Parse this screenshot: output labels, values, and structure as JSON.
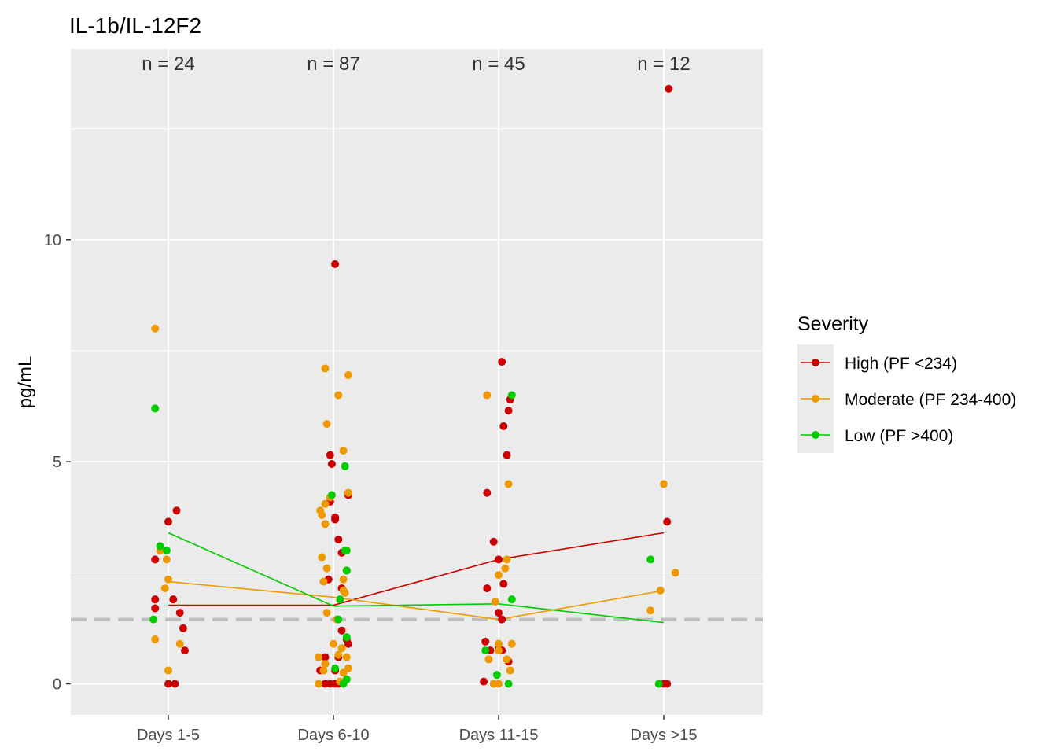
{
  "chart_data": {
    "type": "scatter",
    "title": "IL-1b/IL-12F2",
    "xlabel": "",
    "ylabel": "pg/mL",
    "categories": [
      "Days 1-5",
      "Days 6-10",
      "Days 11-15",
      "Days >15"
    ],
    "ylim": [
      -0.7,
      14.3
    ],
    "yticks": [
      0,
      5,
      10
    ],
    "reference_line": 1.45,
    "counts": [
      "n = 24",
      "n = 87",
      "n = 45",
      "n = 12"
    ],
    "legend": {
      "title": "Severity",
      "position": "right"
    },
    "series": [
      {
        "name": "High (PF <234)",
        "color": "#cc0000",
        "means": [
          1.77,
          1.77,
          2.8,
          3.4
        ],
        "points": [
          {
            "cat": 0,
            "j": -0.08,
            "y": 2.8
          },
          {
            "cat": 0,
            "j": -0.08,
            "y": 1.9
          },
          {
            "cat": 0,
            "j": -0.08,
            "y": 1.7
          },
          {
            "cat": 0,
            "j": 0.0,
            "y": 3.65
          },
          {
            "cat": 0,
            "j": 0.05,
            "y": 3.9
          },
          {
            "cat": 0,
            "j": 0.03,
            "y": 1.9
          },
          {
            "cat": 0,
            "j": 0.07,
            "y": 1.6
          },
          {
            "cat": 0,
            "j": 0.09,
            "y": 1.25
          },
          {
            "cat": 0,
            "j": 0.1,
            "y": 0.75
          },
          {
            "cat": 0,
            "j": 0.0,
            "y": 0.0
          },
          {
            "cat": 0,
            "j": 0.04,
            "y": 0.0
          },
          {
            "cat": 1,
            "j": 0.01,
            "y": 9.45
          },
          {
            "cat": 1,
            "j": -0.02,
            "y": 5.15
          },
          {
            "cat": 1,
            "j": -0.01,
            "y": 4.95
          },
          {
            "cat": 1,
            "j": 0.09,
            "y": 4.25
          },
          {
            "cat": 1,
            "j": -0.02,
            "y": 4.1
          },
          {
            "cat": 1,
            "j": 0.01,
            "y": 3.75
          },
          {
            "cat": 1,
            "j": 0.01,
            "y": 3.7
          },
          {
            "cat": 1,
            "j": 0.03,
            "y": 3.25
          },
          {
            "cat": 1,
            "j": 0.05,
            "y": 2.95
          },
          {
            "cat": 1,
            "j": 0.08,
            "y": 2.55
          },
          {
            "cat": 1,
            "j": -0.03,
            "y": 2.35
          },
          {
            "cat": 1,
            "j": 0.05,
            "y": 2.15
          },
          {
            "cat": 1,
            "j": 0.05,
            "y": 1.2
          },
          {
            "cat": 1,
            "j": 0.08,
            "y": 1.0
          },
          {
            "cat": 1,
            "j": 0.09,
            "y": 0.9
          },
          {
            "cat": 1,
            "j": -0.05,
            "y": 0.6
          },
          {
            "cat": 1,
            "j": 0.03,
            "y": 0.6
          },
          {
            "cat": 1,
            "j": -0.08,
            "y": 0.3
          },
          {
            "cat": 1,
            "j": 0.01,
            "y": 0.3
          },
          {
            "cat": 1,
            "j": -0.05,
            "y": 0.0
          },
          {
            "cat": 1,
            "j": -0.02,
            "y": 0.0
          },
          {
            "cat": 1,
            "j": 0.01,
            "y": 0.0
          },
          {
            "cat": 1,
            "j": 0.03,
            "y": 0.0
          },
          {
            "cat": 2,
            "j": 0.02,
            "y": 7.25
          },
          {
            "cat": 2,
            "j": 0.07,
            "y": 6.4
          },
          {
            "cat": 2,
            "j": 0.06,
            "y": 6.15
          },
          {
            "cat": 2,
            "j": 0.03,
            "y": 5.8
          },
          {
            "cat": 2,
            "j": 0.05,
            "y": 5.15
          },
          {
            "cat": 2,
            "j": -0.07,
            "y": 4.3
          },
          {
            "cat": 2,
            "j": -0.03,
            "y": 3.2
          },
          {
            "cat": 2,
            "j": 0.0,
            "y": 2.8
          },
          {
            "cat": 2,
            "j": 0.03,
            "y": 2.25
          },
          {
            "cat": 2,
            "j": -0.07,
            "y": 2.15
          },
          {
            "cat": 2,
            "j": 0.0,
            "y": 1.6
          },
          {
            "cat": 2,
            "j": 0.02,
            "y": 1.45
          },
          {
            "cat": 2,
            "j": -0.08,
            "y": 0.95
          },
          {
            "cat": 2,
            "j": -0.05,
            "y": 0.75
          },
          {
            "cat": 2,
            "j": 0.0,
            "y": 0.8
          },
          {
            "cat": 2,
            "j": 0.02,
            "y": 0.75
          },
          {
            "cat": 2,
            "j": 0.06,
            "y": 0.5
          },
          {
            "cat": 2,
            "j": -0.09,
            "y": 0.05
          },
          {
            "cat": 3,
            "j": 0.03,
            "y": 13.4
          },
          {
            "cat": 3,
            "j": 0.02,
            "y": 3.65
          },
          {
            "cat": 3,
            "j": 0.0,
            "y": 0.0
          },
          {
            "cat": 3,
            "j": 0.02,
            "y": 0.0
          }
        ]
      },
      {
        "name": "Moderate (PF 234-400)",
        "color": "#ee9900",
        "means": [
          2.3,
          1.95,
          1.45,
          2.1
        ],
        "points": [
          {
            "cat": 0,
            "j": -0.08,
            "y": 8.0
          },
          {
            "cat": 0,
            "j": -0.05,
            "y": 3.0
          },
          {
            "cat": 0,
            "j": -0.01,
            "y": 2.8
          },
          {
            "cat": 0,
            "j": 0.0,
            "y": 2.35
          },
          {
            "cat": 0,
            "j": -0.02,
            "y": 2.15
          },
          {
            "cat": 0,
            "j": -0.08,
            "y": 1.0
          },
          {
            "cat": 0,
            "j": 0.07,
            "y": 0.9
          },
          {
            "cat": 0,
            "j": 0.0,
            "y": 0.3
          },
          {
            "cat": 1,
            "j": -0.05,
            "y": 7.1
          },
          {
            "cat": 1,
            "j": 0.09,
            "y": 6.95
          },
          {
            "cat": 1,
            "j": 0.03,
            "y": 6.5
          },
          {
            "cat": 1,
            "j": -0.04,
            "y": 5.85
          },
          {
            "cat": 1,
            "j": 0.06,
            "y": 5.25
          },
          {
            "cat": 1,
            "j": 0.09,
            "y": 4.3
          },
          {
            "cat": 1,
            "j": -0.02,
            "y": 4.2
          },
          {
            "cat": 1,
            "j": -0.05,
            "y": 4.05
          },
          {
            "cat": 1,
            "j": -0.08,
            "y": 3.9
          },
          {
            "cat": 1,
            "j": -0.07,
            "y": 3.8
          },
          {
            "cat": 1,
            "j": -0.05,
            "y": 3.6
          },
          {
            "cat": 1,
            "j": -0.07,
            "y": 2.85
          },
          {
            "cat": 1,
            "j": -0.04,
            "y": 2.6
          },
          {
            "cat": 1,
            "j": -0.06,
            "y": 2.3
          },
          {
            "cat": 1,
            "j": 0.06,
            "y": 2.35
          },
          {
            "cat": 1,
            "j": 0.06,
            "y": 2.1
          },
          {
            "cat": 1,
            "j": 0.07,
            "y": 2.05
          },
          {
            "cat": 1,
            "j": -0.04,
            "y": 1.6
          },
          {
            "cat": 1,
            "j": 0.02,
            "y": 1.45
          },
          {
            "cat": 1,
            "j": 0.0,
            "y": 0.9
          },
          {
            "cat": 1,
            "j": 0.05,
            "y": 0.8
          },
          {
            "cat": 1,
            "j": 0.03,
            "y": 0.65
          },
          {
            "cat": 1,
            "j": -0.09,
            "y": 0.6
          },
          {
            "cat": 1,
            "j": 0.08,
            "y": 0.6
          },
          {
            "cat": 1,
            "j": -0.05,
            "y": 0.45
          },
          {
            "cat": 1,
            "j": 0.09,
            "y": 0.35
          },
          {
            "cat": 1,
            "j": -0.06,
            "y": 0.3
          },
          {
            "cat": 1,
            "j": 0.06,
            "y": 0.25
          },
          {
            "cat": 1,
            "j": -0.09,
            "y": 0.0
          },
          {
            "cat": 1,
            "j": 0.04,
            "y": 0.05
          },
          {
            "cat": 2,
            "j": -0.07,
            "y": 6.5
          },
          {
            "cat": 2,
            "j": 0.06,
            "y": 4.5
          },
          {
            "cat": 2,
            "j": 0.05,
            "y": 2.8
          },
          {
            "cat": 2,
            "j": 0.04,
            "y": 2.6
          },
          {
            "cat": 2,
            "j": 0.0,
            "y": 2.45
          },
          {
            "cat": 2,
            "j": -0.02,
            "y": 1.85
          },
          {
            "cat": 2,
            "j": 0.08,
            "y": 0.9
          },
          {
            "cat": 2,
            "j": 0.0,
            "y": 0.9
          },
          {
            "cat": 2,
            "j": 0.0,
            "y": 0.75
          },
          {
            "cat": 2,
            "j": -0.06,
            "y": 0.55
          },
          {
            "cat": 2,
            "j": 0.05,
            "y": 0.55
          },
          {
            "cat": 2,
            "j": 0.07,
            "y": 0.3
          },
          {
            "cat": 2,
            "j": -0.03,
            "y": 0.0
          },
          {
            "cat": 2,
            "j": 0.0,
            "y": 0.0
          },
          {
            "cat": 3,
            "j": 0.0,
            "y": 4.5
          },
          {
            "cat": 3,
            "j": 0.07,
            "y": 2.5
          },
          {
            "cat": 3,
            "j": -0.02,
            "y": 2.1
          },
          {
            "cat": 3,
            "j": -0.08,
            "y": 1.65
          }
        ]
      },
      {
        "name": "Low (PF >400)",
        "color": "#00cc00",
        "means": [
          3.4,
          1.75,
          1.8,
          1.38
        ],
        "points": [
          {
            "cat": 0,
            "j": -0.08,
            "y": 6.2
          },
          {
            "cat": 0,
            "j": -0.05,
            "y": 3.1
          },
          {
            "cat": 0,
            "j": -0.01,
            "y": 3.0
          },
          {
            "cat": 0,
            "j": -0.09,
            "y": 1.45
          },
          {
            "cat": 1,
            "j": 0.07,
            "y": 4.9
          },
          {
            "cat": 1,
            "j": -0.01,
            "y": 4.25
          },
          {
            "cat": 1,
            "j": 0.07,
            "y": 3.0
          },
          {
            "cat": 1,
            "j": 0.08,
            "y": 3.0
          },
          {
            "cat": 1,
            "j": 0.08,
            "y": 2.55
          },
          {
            "cat": 1,
            "j": 0.04,
            "y": 1.9
          },
          {
            "cat": 1,
            "j": 0.03,
            "y": 1.45
          },
          {
            "cat": 1,
            "j": 0.08,
            "y": 1.05
          },
          {
            "cat": 1,
            "j": 0.01,
            "y": 0.35
          },
          {
            "cat": 1,
            "j": 0.08,
            "y": 0.1
          },
          {
            "cat": 1,
            "j": 0.06,
            "y": 0.0
          },
          {
            "cat": 2,
            "j": 0.08,
            "y": 6.5
          },
          {
            "cat": 2,
            "j": 0.08,
            "y": 1.9
          },
          {
            "cat": 2,
            "j": -0.08,
            "y": 0.75
          },
          {
            "cat": 2,
            "j": -0.01,
            "y": 0.2
          },
          {
            "cat": 2,
            "j": 0.06,
            "y": 0.0
          },
          {
            "cat": 3,
            "j": -0.08,
            "y": 2.8
          },
          {
            "cat": 3,
            "j": -0.03,
            "y": 0.0
          }
        ]
      }
    ]
  }
}
